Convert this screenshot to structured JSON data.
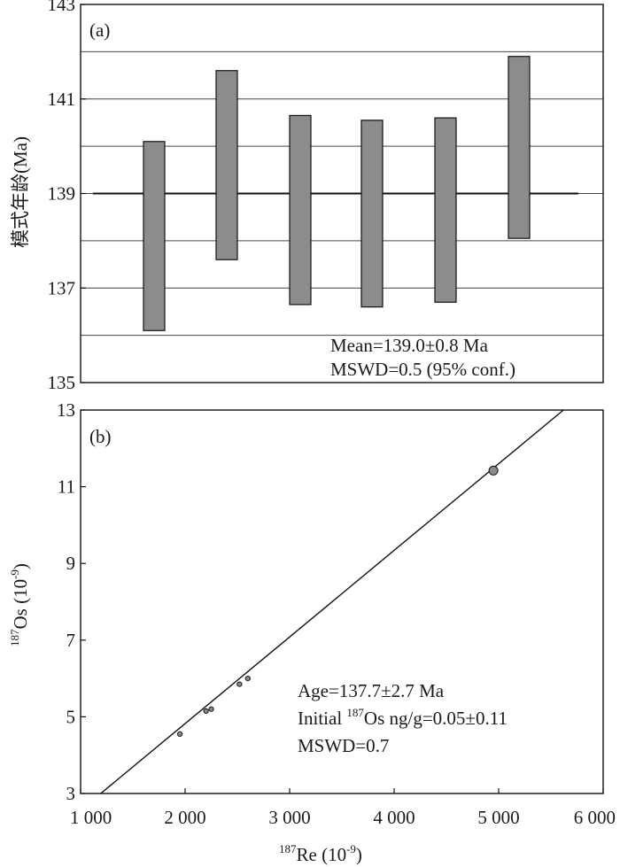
{
  "chart_data": [
    {
      "type": "bar",
      "panel_label": "(a)",
      "ylabel": "模式年龄(Ma)",
      "xlabel": "",
      "ylim": [
        135,
        143
      ],
      "yticks": [
        135,
        137,
        139,
        141,
        143
      ],
      "ytick_labels": [
        "135",
        "137",
        "139",
        "141",
        "143"
      ],
      "grid_y": [
        136,
        138,
        140,
        142
      ],
      "grid": true,
      "bar_color": "#8c8c8c",
      "bars": [
        {
          "low": 136.1,
          "high": 140.1
        },
        {
          "low": 137.6,
          "high": 141.6
        },
        {
          "low": 136.65,
          "high": 140.65
        },
        {
          "low": 136.6,
          "high": 140.55
        },
        {
          "low": 136.7,
          "high": 140.6
        },
        {
          "low": 138.05,
          "high": 141.9
        }
      ],
      "mean_line": 139.0,
      "annotations": [
        "Mean=139.0±0.8 Ma",
        "MSWD=0.5 (95% conf.)"
      ]
    },
    {
      "type": "scatter",
      "panel_label": "(b)",
      "xlabel": {
        "sup": "187",
        "main": "Re (10",
        "exp": "-9",
        "close": ")"
      },
      "ylabel": {
        "sup": "187",
        "main": "Os (10",
        "exp": "-9",
        "close": ")"
      },
      "xlim": [
        1000,
        6000
      ],
      "ylim": [
        3,
        13
      ],
      "xticks": [
        1000,
        2000,
        3000,
        4000,
        5000,
        6000
      ],
      "xtick_labels": [
        "1 000",
        "2 000",
        "3 000",
        "4 000",
        "5 000",
        "6 000"
      ],
      "yticks": [
        3,
        5,
        7,
        9,
        11,
        13
      ],
      "ytick_labels": [
        "3",
        "5",
        "7",
        "9",
        "11",
        "13"
      ],
      "grid": false,
      "point_color": "#8c8c8c",
      "points": [
        {
          "x": 1950,
          "y": 4.55,
          "size": "small"
        },
        {
          "x": 2200,
          "y": 5.15,
          "size": "small"
        },
        {
          "x": 2250,
          "y": 5.2,
          "size": "small"
        },
        {
          "x": 2520,
          "y": 5.85,
          "size": "small"
        },
        {
          "x": 2600,
          "y": 6.0,
          "size": "small"
        },
        {
          "x": 4950,
          "y": 11.42,
          "size": "large"
        }
      ],
      "isochron": {
        "x_start": 1060,
        "y_start": 2.7,
        "x_end": 5620,
        "y_end": 13.0
      },
      "annotations": {
        "age": "Age=137.7±2.7 Ma",
        "initial_prefix": "Initial ",
        "initial_sup": "187",
        "initial_rest": "Os ng/g=0.05±0.11",
        "mswd": "MSWD=0.7"
      }
    }
  ]
}
